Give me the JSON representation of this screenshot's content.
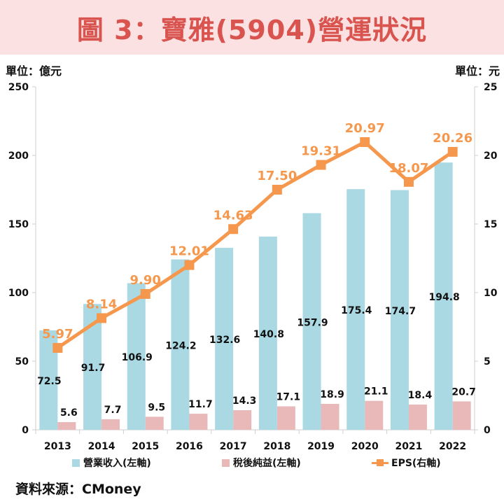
{
  "title": "圖 3：寶雅(5904)營運狀況",
  "unit_left": "單位：億元",
  "unit_right": "單位：元",
  "source": "資料來源：CMoney",
  "colors": {
    "revenue": "#aad9e3",
    "net_income": "#e9b8b8",
    "eps": "#f5984d",
    "title": "#d9534f",
    "title_bg": "#fbe1e1",
    "axis": "#cfcfcf"
  },
  "chart_data": {
    "type": "bar+line",
    "categories": [
      "2013",
      "2014",
      "2015",
      "2016",
      "2017",
      "2018",
      "2019",
      "2020",
      "2021",
      "2022"
    ],
    "series": [
      {
        "name": "營業收入(左軸)",
        "type": "bar",
        "axis": "left",
        "values": [
          72.5,
          91.7,
          106.9,
          124.2,
          132.6,
          140.8,
          157.9,
          175.4,
          174.7,
          194.8
        ],
        "labels": [
          "72.5",
          "91.7",
          "106.9",
          "124.2",
          "132.6",
          "140.8",
          "157.9",
          "175.4",
          "174.7",
          "194.8"
        ]
      },
      {
        "name": "稅後純益(左軸)",
        "type": "bar",
        "axis": "left",
        "values": [
          5.6,
          7.7,
          9.5,
          11.7,
          14.3,
          17.1,
          18.9,
          21.1,
          18.4,
          20.7
        ],
        "labels": [
          "5.6",
          "7.7",
          "9.5",
          "11.7",
          "14.3",
          "17.1",
          "18.9",
          "21.1",
          "18.4",
          "20.7"
        ]
      },
      {
        "name": "EPS(右軸)",
        "type": "line",
        "axis": "right",
        "values": [
          5.97,
          8.14,
          9.9,
          12.01,
          14.63,
          17.5,
          19.31,
          20.97,
          18.07,
          20.26
        ],
        "labels": [
          "5.97",
          "8.14",
          "9.90",
          "12.01",
          "14.63",
          "17.50",
          "19.31",
          "20.97",
          "18.07",
          "20.26"
        ]
      }
    ],
    "y_left": {
      "range": [
        0,
        250
      ],
      "ticks": [
        "0",
        "50",
        "100",
        "150",
        "200",
        "250"
      ]
    },
    "y_right": {
      "range": [
        0,
        25
      ],
      "ticks": [
        "0",
        "5",
        "10",
        "15",
        "20",
        "25"
      ]
    },
    "grid": false,
    "legend_position": "bottom"
  }
}
